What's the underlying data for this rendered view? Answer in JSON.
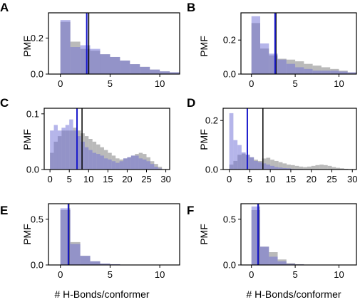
{
  "figure": {
    "xlabel": "# H-Bonds/conformer",
    "ylabel": "PMF"
  },
  "colors": {
    "gray": "#8c8c8c",
    "blue": "#6b6bd6",
    "blue_line": "#1a1acc",
    "black_line": "#000000"
  },
  "chart_data": [
    {
      "type": "bar",
      "panel": "A",
      "xlim": [
        -1.2,
        12
      ],
      "ylim": [
        0,
        0.34
      ],
      "xticks": [
        0,
        5,
        10
      ],
      "yticks": [
        0.0,
        0.2
      ],
      "bins": [
        0,
        1,
        2,
        3,
        4,
        5,
        6,
        7,
        8,
        9,
        10,
        11
      ],
      "series": [
        {
          "values": [
            0.29,
            0.18,
            0.14,
            0.13,
            0.11,
            0.095,
            0.075,
            0.055,
            0.04,
            0.025,
            0.015,
            0.01
          ]
        },
        {
          "values": [
            0.3,
            0.15,
            0.16,
            0.14,
            0.11,
            0.095,
            0.075,
            0.055,
            0.04,
            0.025,
            0.015,
            0.01
          ]
        }
      ],
      "vlines": [
        2.85,
        2.65
      ]
    },
    {
      "type": "bar",
      "panel": "B",
      "xlim": [
        -1.2,
        12
      ],
      "ylim": [
        0,
        0.36
      ],
      "xticks": [
        0,
        5,
        10
      ],
      "yticks": [
        0.0,
        0.2
      ],
      "bins": [
        0,
        1,
        2,
        3,
        4,
        5,
        6,
        7,
        8,
        9,
        10,
        11
      ],
      "series": [
        {
          "values": [
            0.3,
            0.15,
            0.11,
            0.09,
            0.085,
            0.075,
            0.06,
            0.05,
            0.04,
            0.03,
            0.02,
            0.01
          ]
        },
        {
          "values": [
            0.34,
            0.18,
            0.12,
            0.085,
            0.06,
            0.04,
            0.03,
            0.02,
            0.02,
            0.02,
            0.015,
            0.01
          ]
        }
      ],
      "vlines": [
        2.8,
        2.7
      ]
    },
    {
      "type": "bar",
      "panel": "C",
      "xlim": [
        -1.5,
        31
      ],
      "ylim": [
        0,
        0.11
      ],
      "xticks": [
        0,
        5,
        10,
        15,
        20,
        25,
        30
      ],
      "yticks": [
        0.0,
        0.1
      ],
      "bins": [
        0,
        1,
        2,
        3,
        4,
        5,
        6,
        7,
        8,
        9,
        10,
        11,
        12,
        13,
        14,
        15,
        16,
        17,
        18,
        19,
        20,
        21,
        22,
        23,
        24,
        25,
        26,
        27,
        28
      ],
      "series": [
        {
          "values": [
            0.03,
            0.05,
            0.06,
            0.07,
            0.07,
            0.07,
            0.075,
            0.07,
            0.065,
            0.06,
            0.055,
            0.05,
            0.045,
            0.04,
            0.035,
            0.03,
            0.025,
            0.02,
            0.018,
            0.02,
            0.022,
            0.025,
            0.028,
            0.03,
            0.028,
            0.022,
            0.015,
            0.01,
            0.005
          ]
        },
        {
          "values": [
            0.07,
            0.08,
            0.07,
            0.075,
            0.08,
            0.09,
            0.07,
            0.06,
            0.05,
            0.04,
            0.035,
            0.03,
            0.028,
            0.025,
            0.02,
            0.018,
            0.015,
            0.012,
            0.015,
            0.02,
            0.022,
            0.025,
            0.025,
            0.02,
            0.018,
            0.015,
            0.01,
            0.005,
            0.002
          ]
        }
      ],
      "vlines": [
        8.3,
        7.0
      ]
    },
    {
      "type": "bar",
      "panel": "D",
      "xlim": [
        -1.5,
        31
      ],
      "ylim": [
        0,
        0.25
      ],
      "xticks": [
        0,
        5,
        10,
        15,
        20,
        25,
        30
      ],
      "yticks": [
        0.0,
        0.2
      ],
      "bins": [
        0,
        1,
        2,
        3,
        4,
        5,
        6,
        7,
        8,
        9,
        10,
        11,
        12,
        13,
        14,
        15,
        16,
        17,
        18,
        19,
        20,
        21,
        22,
        23,
        24,
        25,
        26,
        27,
        28
      ],
      "series": [
        {
          "values": [
            0.02,
            0.035,
            0.06,
            0.065,
            0.06,
            0.05,
            0.04,
            0.035,
            0.045,
            0.048,
            0.04,
            0.035,
            0.03,
            0.025,
            0.02,
            0.018,
            0.015,
            0.012,
            0.01,
            0.012,
            0.015,
            0.018,
            0.02,
            0.018,
            0.015,
            0.01,
            0.007,
            0.005,
            0.003
          ]
        },
        {
          "values": [
            0.23,
            0.12,
            0.1,
            0.07,
            0.06,
            0.05,
            0.035,
            0.03,
            0.025,
            0.02,
            0.015,
            0.01,
            0.008,
            0.006,
            0.005,
            0.003,
            0.002,
            0.002,
            0.001,
            0.001,
            0.001,
            0.001,
            0.001,
            0.001,
            0.001,
            0,
            0,
            0,
            0
          ]
        }
      ],
      "vlines": [
        8.2,
        4.4
      ]
    },
    {
      "type": "bar",
      "panel": "E",
      "xlim": [
        -1.2,
        12
      ],
      "ylim": [
        0,
        0.67
      ],
      "xticks": [
        0,
        5,
        10
      ],
      "yticks": [
        0.0,
        0.5
      ],
      "bins": [
        0,
        1,
        2,
        3,
        4,
        5,
        6,
        7,
        8,
        9,
        10,
        11
      ],
      "series": [
        {
          "values": [
            0.6,
            0.25,
            0.1,
            0.04,
            0.015,
            0.008,
            0.004,
            0.002,
            0.001,
            0,
            0,
            0
          ]
        },
        {
          "values": [
            0.62,
            0.23,
            0.1,
            0.04,
            0.015,
            0.008,
            0.004,
            0.002,
            0.001,
            0,
            0,
            0
          ]
        }
      ],
      "vlines": [
        0.85,
        0.8
      ]
    },
    {
      "type": "bar",
      "panel": "F",
      "xlim": [
        -1.2,
        12
      ],
      "ylim": [
        0,
        0.67
      ],
      "xticks": [
        0,
        5,
        10
      ],
      "yticks": [
        0.0,
        0.5
      ],
      "bins": [
        0,
        1,
        2,
        3,
        4,
        5,
        6,
        7,
        8,
        9,
        10,
        11
      ],
      "series": [
        {
          "values": [
            0.6,
            0.2,
            0.14,
            0.06,
            0.02,
            0.008,
            0.004,
            0.002,
            0.001,
            0,
            0,
            0
          ]
        },
        {
          "values": [
            0.64,
            0.2,
            0.09,
            0.04,
            0.012,
            0.006,
            0.003,
            0.001,
            0,
            0,
            0,
            0
          ]
        }
      ],
      "vlines": [
        0.8,
        0.75
      ]
    }
  ]
}
